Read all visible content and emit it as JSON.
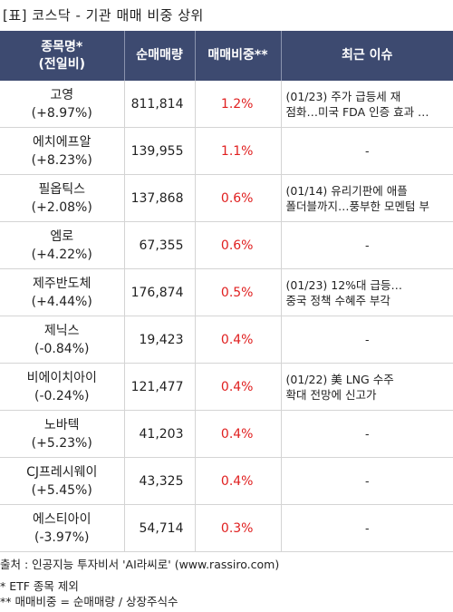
{
  "title": "[표] 코스닥 - 기관 매매 비중 상위",
  "headers": {
    "name_line1": "종목명*",
    "name_line2": "(전일비)",
    "net_volume": "순매매량",
    "ratio": "매매비중**",
    "issue": "최근 이슈"
  },
  "rows": [
    {
      "name": "고영",
      "change": "(+8.97%)",
      "volume": "811,814",
      "ratio": "1.2%",
      "issue1": "(01/23) 주가 급등세 재",
      "issue2": "점화…미국 FDA 인증 효과 …"
    },
    {
      "name": "에치에프알",
      "change": "(+8.23%)",
      "volume": "139,955",
      "ratio": "1.1%",
      "issue1": "-",
      "issue2": ""
    },
    {
      "name": "필옵틱스",
      "change": "(+2.08%)",
      "volume": "137,868",
      "ratio": "0.6%",
      "issue1": "(01/14) 유리기판에 애플",
      "issue2": "폴더블까지…풍부한 모멘텀 부"
    },
    {
      "name": "엠로",
      "change": "(+4.22%)",
      "volume": "67,355",
      "ratio": "0.6%",
      "issue1": "-",
      "issue2": ""
    },
    {
      "name": "제주반도체",
      "change": "(+4.44%)",
      "volume": "176,874",
      "ratio": "0.5%",
      "issue1": "(01/23) 12%대 급등…",
      "issue2": "중국 정책 수혜주 부각"
    },
    {
      "name": "제닉스",
      "change": "(-0.84%)",
      "volume": "19,423",
      "ratio": "0.4%",
      "issue1": "-",
      "issue2": ""
    },
    {
      "name": "비에이치아이",
      "change": "(-0.24%)",
      "volume": "121,477",
      "ratio": "0.4%",
      "issue1": "(01/22) 美 LNG 수주",
      "issue2": "확대 전망에 신고가"
    },
    {
      "name": "노바텍",
      "change": "(+5.23%)",
      "volume": "41,203",
      "ratio": "0.4%",
      "issue1": "-",
      "issue2": ""
    },
    {
      "name": "CJ프레시웨이",
      "change": "(+5.45%)",
      "volume": "43,325",
      "ratio": "0.4%",
      "issue1": "-",
      "issue2": ""
    },
    {
      "name": "에스티아이",
      "change": "(-3.97%)",
      "volume": "54,714",
      "ratio": "0.3%",
      "issue1": "-",
      "issue2": ""
    }
  ],
  "footer": {
    "source": "출처 : 인공지능 투자비서 'AI라씨로' (www.rassiro.com)",
    "note1": "* ETF 종목 제외",
    "note2": "** 매매비중 = 순매매량 / 상장주식수"
  },
  "colors": {
    "header_bg": "#3d4a70",
    "ratio_text": "#e02020"
  }
}
